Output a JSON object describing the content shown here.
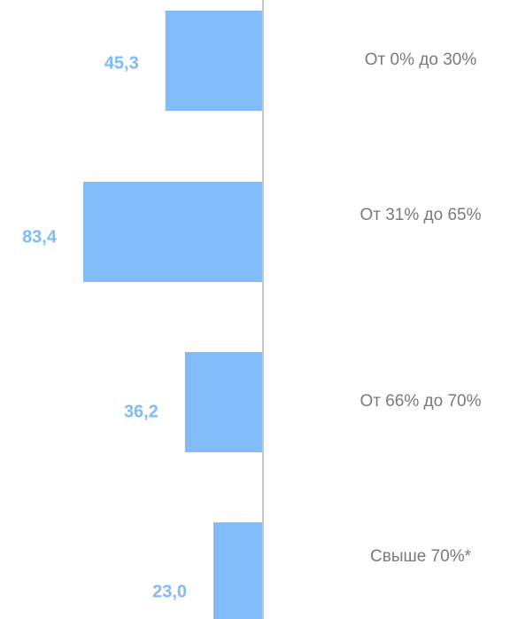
{
  "chart_data": {
    "type": "barh",
    "categories": [
      "От 0% до 30%",
      "От 31% до 65%",
      "От 66% до 70%",
      "Свыше 70%*"
    ],
    "values": [
      45.3,
      83.4,
      36.2,
      23.0
    ],
    "value_labels": [
      "45,3",
      "83,4",
      "36,2",
      "23,0"
    ],
    "color": "#80bbfa"
  }
}
